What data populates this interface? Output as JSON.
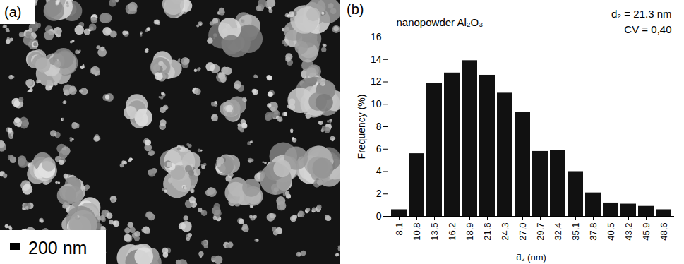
{
  "image_panel": {
    "label": "(a)",
    "scale_bar": "200 nm"
  },
  "chart_data": {
    "type": "bar",
    "panel_label": "(b)",
    "title": "nanopowder Al₂O₃",
    "annotations": [
      "d̄₂ = 21.3 nm",
      "CV = 0,40"
    ],
    "x_label": "d̄₂ (nm)",
    "y_label": "Frequency (%)",
    "categories": [
      "8,1",
      "10,8",
      "13,5",
      "16,2",
      "18,9",
      "21,6",
      "24,3",
      "27,0",
      "29,7",
      "32,4",
      "35,1",
      "37,8",
      "40,5",
      "43,2",
      "45,9",
      "48,6"
    ],
    "values": [
      0.6,
      5.6,
      11.9,
      12.8,
      13.9,
      12.6,
      11.0,
      9.3,
      5.8,
      5.9,
      4.0,
      2.1,
      1.2,
      1.1,
      0.9,
      0.6
    ],
    "color": "#111111",
    "ylim": [
      0,
      16
    ],
    "yticks": [
      0,
      2,
      4,
      6,
      8,
      10,
      12,
      14,
      16
    ],
    "grid": false,
    "data_labels": false
  }
}
